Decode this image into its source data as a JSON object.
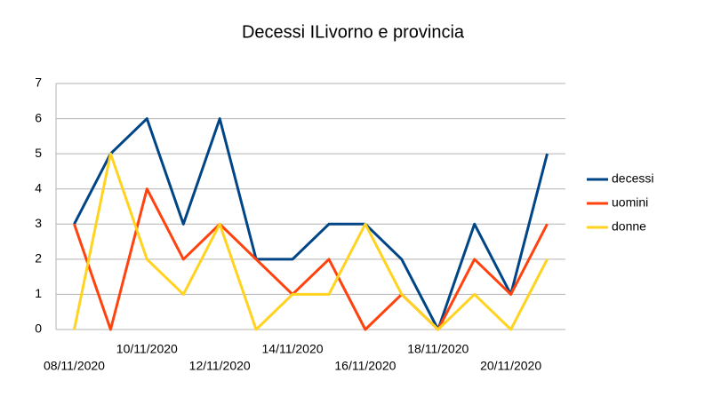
{
  "chart_data": {
    "type": "line",
    "title": "Decessi ILivorno e provincia",
    "categories": [
      "08/11/2020",
      null,
      "10/11/2020",
      null,
      "12/11/2020",
      null,
      "14/11/2020",
      null,
      "16/11/2020",
      null,
      "18/11/2020",
      null,
      "20/11/2020",
      null
    ],
    "series": [
      {
        "name": "decessi",
        "color": "#004586",
        "values": [
          3,
          5,
          6,
          3,
          6,
          2,
          2,
          3,
          3,
          2,
          0,
          3,
          1,
          5
        ]
      },
      {
        "name": "uomini",
        "color": "#ff420e",
        "values": [
          3,
          0,
          4,
          2,
          3,
          2,
          1,
          2,
          0,
          1,
          0,
          2,
          1,
          3
        ]
      },
      {
        "name": "donne",
        "color": "#ffd320",
        "values": [
          0,
          5,
          2,
          1,
          3,
          0,
          1,
          1,
          3,
          1,
          0,
          1,
          0,
          2
        ]
      }
    ],
    "ylim": [
      0,
      7
    ],
    "yticks": [
      0,
      1,
      2,
      3,
      4,
      5,
      6,
      7
    ],
    "grid": true,
    "legend": "right"
  }
}
